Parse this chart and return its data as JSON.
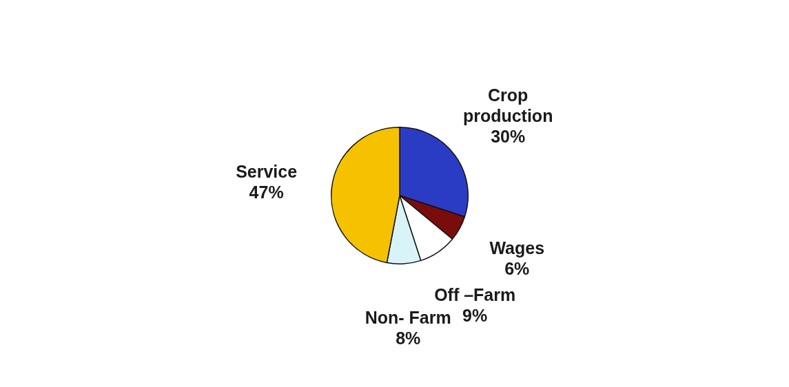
{
  "chart_data": {
    "type": "pie",
    "categories": [
      "Crop production",
      "Wages",
      "Off –Farm",
      "Non- Farm",
      "Service"
    ],
    "values": [
      30,
      6,
      9,
      8,
      47
    ],
    "value_labels": [
      "30%",
      "6%",
      "9%",
      "8%",
      "47%"
    ],
    "colors": [
      "#2b3cc4",
      "#7a0c0c",
      "#ffffff",
      "#d9f4f8",
      "#f6c200"
    ],
    "legend": false
  }
}
